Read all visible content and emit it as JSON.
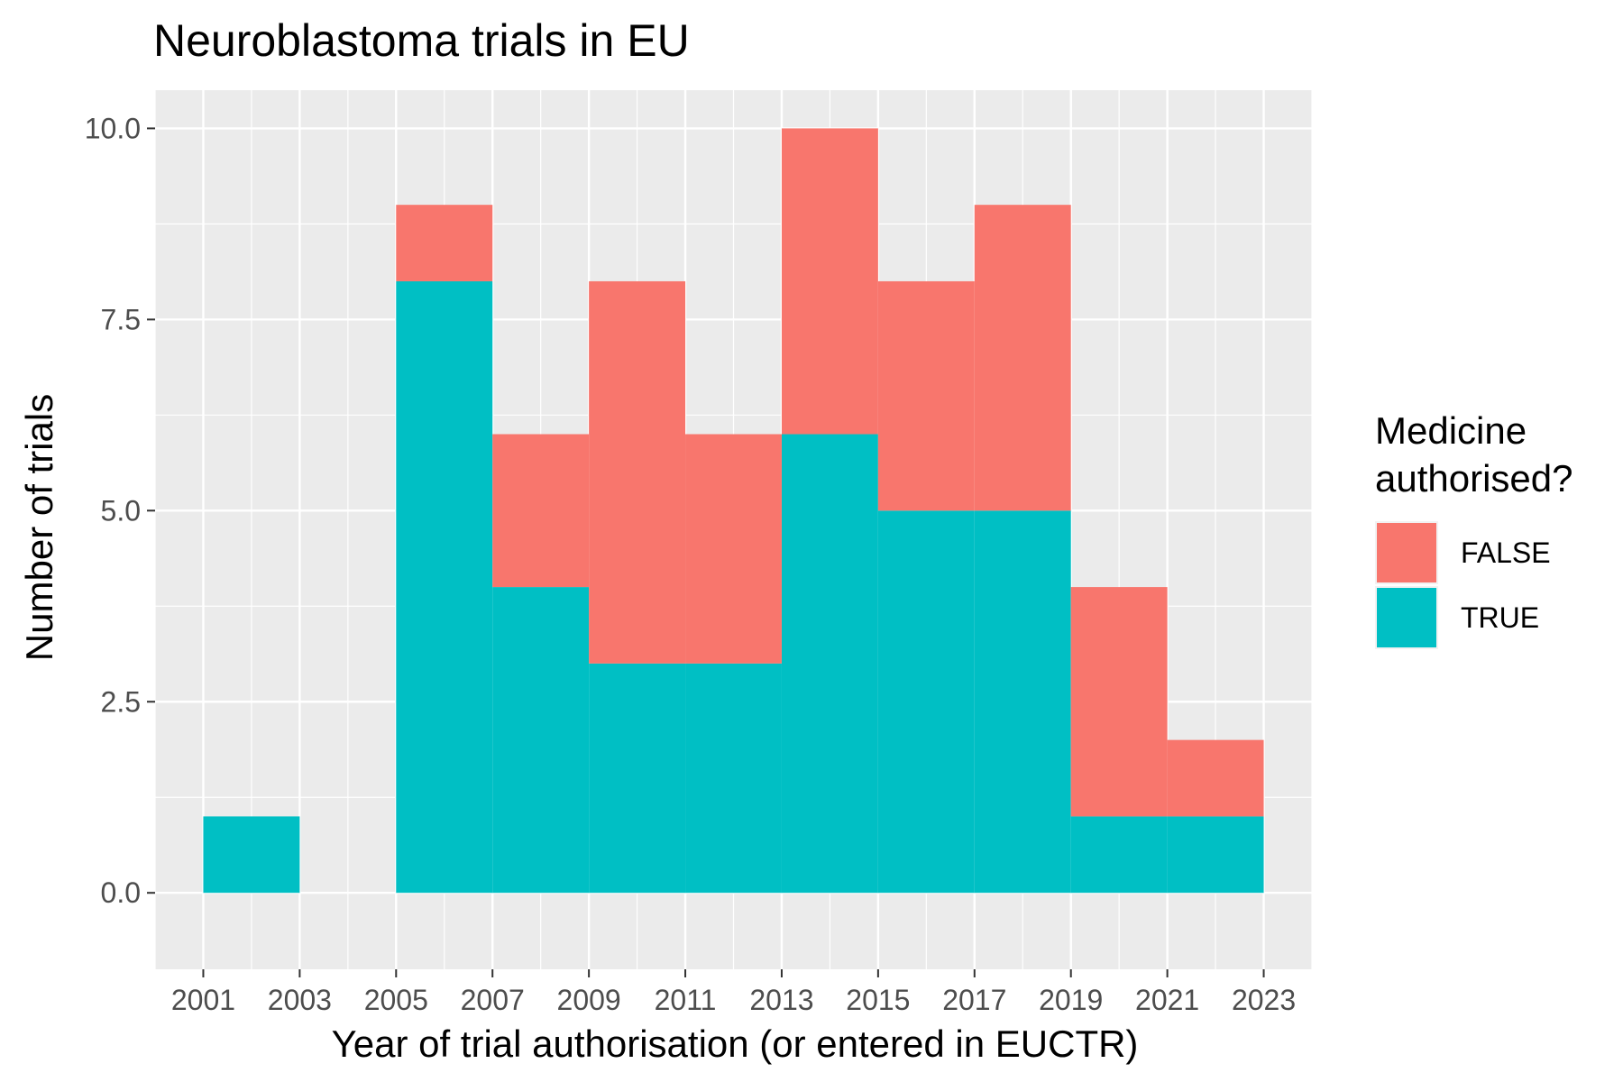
{
  "chart_data": {
    "type": "bar",
    "title": "Neuroblastoma trials in EU",
    "xlabel": "Year of trial authorisation (or entered in EUCTR)",
    "ylabel": "Number of trials",
    "xlim": [
      2000,
      2024
    ],
    "ylim": [
      -1,
      10.5
    ],
    "x_ticks": [
      "2001",
      "2003",
      "2005",
      "2007",
      "2009",
      "2011",
      "2013",
      "2015",
      "2017",
      "2019",
      "2021",
      "2023"
    ],
    "x_tick_values": [
      2001,
      2003,
      2005,
      2007,
      2009,
      2011,
      2013,
      2015,
      2017,
      2019,
      2021,
      2023
    ],
    "y_ticks": [
      "0.0",
      "2.5",
      "5.0",
      "7.5",
      "10.0"
    ],
    "y_tick_values": [
      0,
      2.5,
      5,
      7.5,
      10
    ],
    "bins": [
      {
        "start": 2001,
        "end": 2003
      },
      {
        "start": 2003,
        "end": 2005
      },
      {
        "start": 2005,
        "end": 2007
      },
      {
        "start": 2007,
        "end": 2009
      },
      {
        "start": 2009,
        "end": 2011
      },
      {
        "start": 2011,
        "end": 2013
      },
      {
        "start": 2013,
        "end": 2015
      },
      {
        "start": 2015,
        "end": 2017
      },
      {
        "start": 2017,
        "end": 2019
      },
      {
        "start": 2019,
        "end": 2021
      },
      {
        "start": 2021,
        "end": 2023
      }
    ],
    "series": [
      {
        "name": "TRUE",
        "color": "#00BFC4",
        "values": [
          1,
          0,
          8,
          4,
          3,
          3,
          6,
          5,
          5,
          1,
          1
        ]
      },
      {
        "name": "FALSE",
        "color": "#F8766D",
        "values": [
          0,
          0,
          1,
          2,
          5,
          3,
          4,
          3,
          4,
          3,
          1
        ]
      }
    ],
    "stacked": true,
    "legend": {
      "title": "Medicine authorised?",
      "title_lines": [
        "Medicine",
        "authorised?"
      ],
      "position": "right",
      "entries": [
        {
          "label": "FALSE",
          "color": "#F8766D"
        },
        {
          "label": "TRUE",
          "color": "#00BFC4"
        }
      ]
    },
    "grid": true,
    "panel_background": "#EBEBEB",
    "grid_color": "#FFFFFF"
  }
}
